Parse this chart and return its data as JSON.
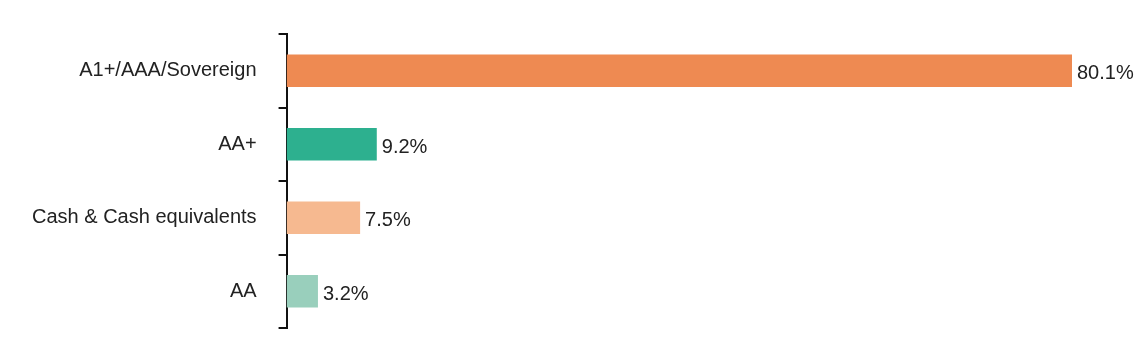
{
  "chart_data": {
    "type": "bar",
    "orientation": "horizontal",
    "categories": [
      "A1+/AAA/Sovereign",
      "AA+",
      "Cash & Cash equivalents",
      "AA"
    ],
    "values": [
      80.1,
      9.2,
      7.5,
      3.2
    ],
    "colors": [
      "#ee8a52",
      "#2db08f",
      "#f6b990",
      "#99cfbc"
    ],
    "value_labels": [
      "80.1%",
      "9.2%",
      "7.5%",
      "3.2%"
    ],
    "grid": false,
    "legend": false,
    "tick_labels": "y"
  }
}
